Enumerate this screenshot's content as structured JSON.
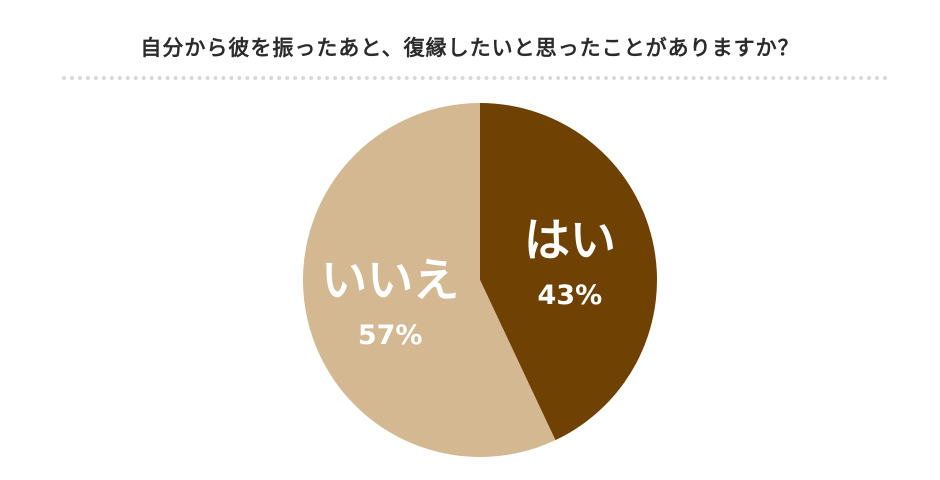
{
  "chart_data": {
    "type": "pie",
    "title": "自分から彼を振ったあと、復縁したいと思ったことがありますか？",
    "slices": [
      {
        "label": "はい",
        "value": 43,
        "value_label": "43%",
        "color": "#6f4203",
        "text_color": "#ffffff"
      },
      {
        "label": "いいえ",
        "value": 57,
        "value_label": "57%",
        "color": "#d4b891",
        "text_color": "#ffffff"
      }
    ],
    "start_angle": "12 o'clock",
    "direction": "clockwise",
    "legend": "none"
  }
}
